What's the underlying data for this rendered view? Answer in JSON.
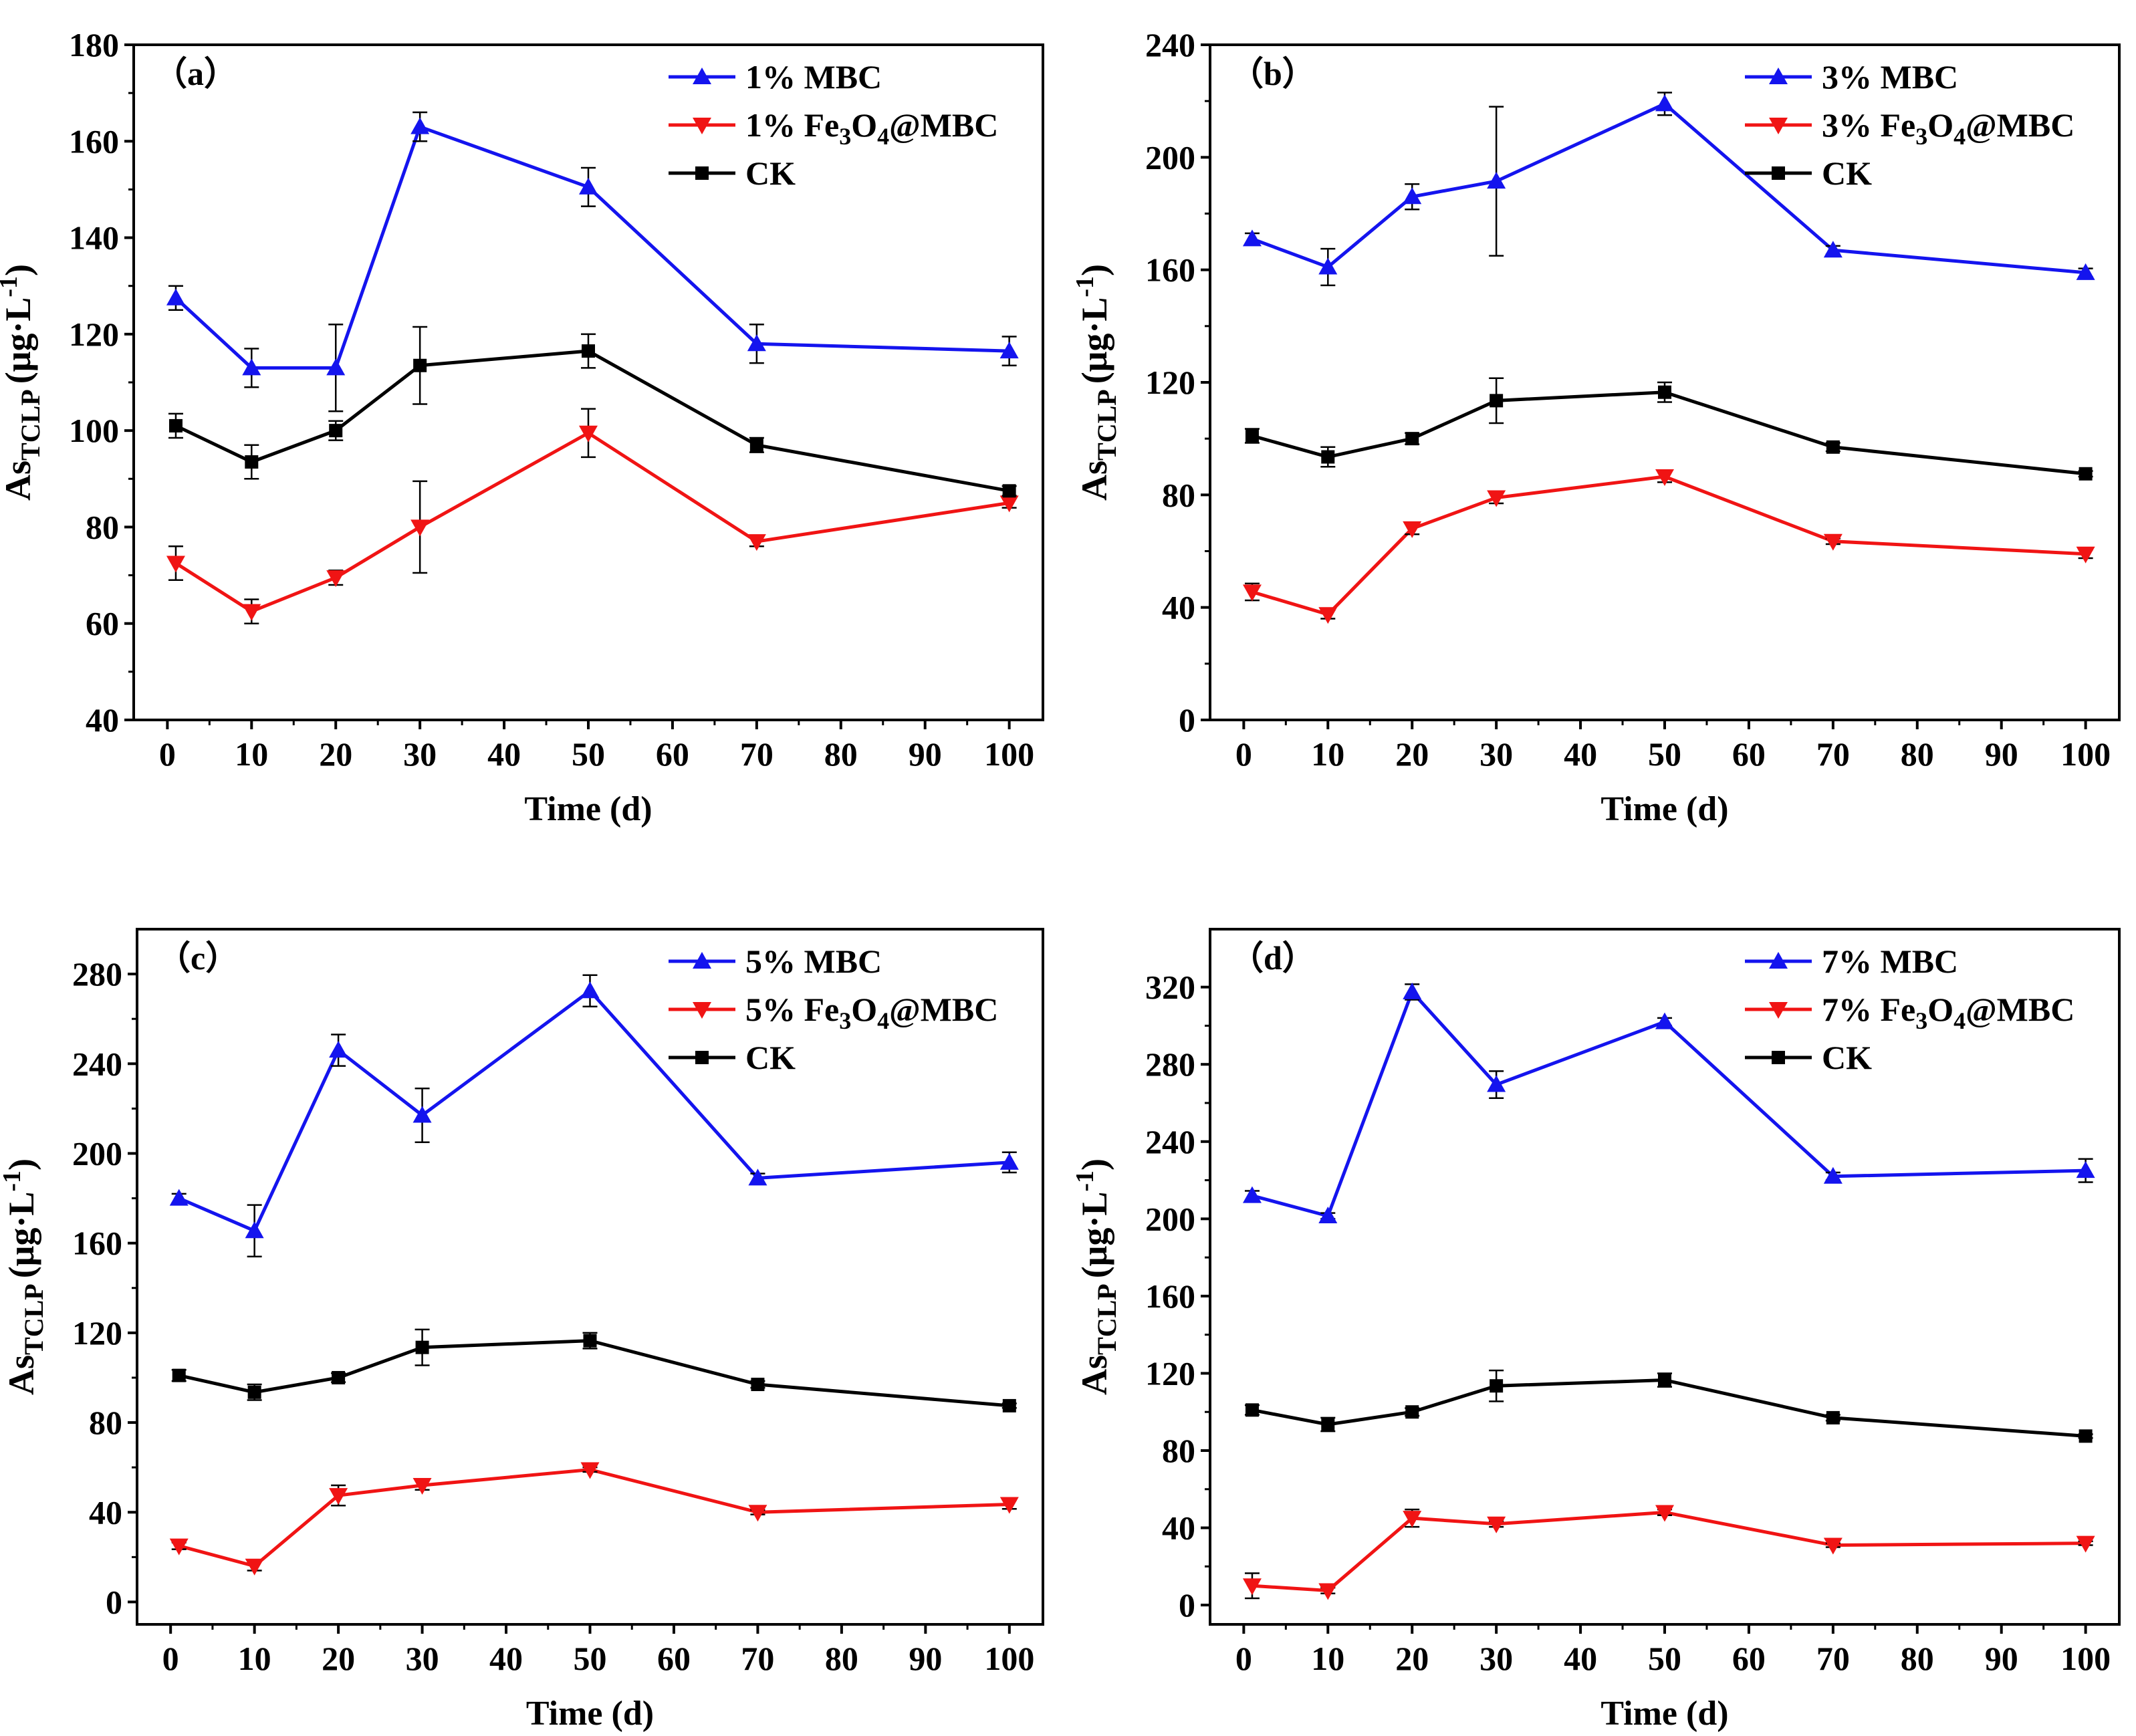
{
  "figure": {
    "colors": {
      "mbc": "#1414ee",
      "fe": "#f01414",
      "ck": "#000000"
    },
    "xlabel": "Time (d)",
    "ylabel_main": "As",
    "ylabel_sub": "TCLP",
    "ylabel_unit": "(μg·L",
    "ylabel_sup": "-1",
    "ylabel_close": ")"
  },
  "chart_data": [
    {
      "type": "line",
      "panel_label": "（a）",
      "x": [
        1,
        10,
        20,
        30,
        50,
        70,
        100
      ],
      "xlim": [
        -4,
        104
      ],
      "x_ticks": [
        0,
        10,
        20,
        30,
        40,
        50,
        60,
        70,
        80,
        90,
        100
      ],
      "ylim": [
        40,
        180
      ],
      "y_ticks": [
        40,
        60,
        80,
        100,
        120,
        140,
        160,
        180
      ],
      "xlabel": "Time (d)",
      "ylabel": "AsTCLP (μg·L-1)",
      "legend_position": "top-right",
      "series": [
        {
          "key": "mbc",
          "legend": [
            {
              "t": "1% MBC"
            }
          ],
          "marker": "triangle-up",
          "values": [
            127.5,
            113,
            113,
            163,
            150.5,
            118,
            116.5
          ],
          "errors": [
            2.5,
            4,
            9,
            3,
            4,
            4,
            3
          ]
        },
        {
          "key": "fe",
          "legend": [
            {
              "t": "1% Fe"
            },
            {
              "t": "3",
              "sub": true
            },
            {
              "t": "O"
            },
            {
              "t": "4",
              "sub": true
            },
            {
              "t": "@MBC"
            }
          ],
          "marker": "triangle-down",
          "values": [
            72.5,
            62.5,
            69.5,
            80,
            99.5,
            77,
            85
          ],
          "errors": [
            3.5,
            2.5,
            1.5,
            9.5,
            5,
            1,
            1
          ]
        },
        {
          "key": "ck",
          "legend": [
            {
              "t": "CK"
            }
          ],
          "marker": "square",
          "values": [
            101,
            93.5,
            100,
            113.5,
            116.5,
            97,
            87.5
          ],
          "errors": [
            2.5,
            3.5,
            2,
            8,
            3.5,
            1.5,
            1
          ]
        }
      ]
    },
    {
      "type": "line",
      "panel_label": "（b）",
      "x": [
        1,
        10,
        20,
        30,
        50,
        70,
        100
      ],
      "xlim": [
        -4,
        104
      ],
      "x_ticks": [
        0,
        10,
        20,
        30,
        40,
        50,
        60,
        70,
        80,
        90,
        100
      ],
      "ylim": [
        0,
        240
      ],
      "y_ticks": [
        0,
        40,
        80,
        120,
        160,
        200,
        240
      ],
      "xlabel": "Time (d)",
      "ylabel": "AsTCLP (μg·L-1)",
      "legend_position": "top-right",
      "series": [
        {
          "key": "mbc",
          "legend": [
            {
              "t": "3% MBC"
            }
          ],
          "marker": "triangle-up",
          "values": [
            171,
            161,
            186,
            191.5,
            219,
            167,
            159
          ],
          "errors": [
            2,
            6.5,
            4.5,
            26.5,
            4,
            1.5,
            1.5
          ]
        },
        {
          "key": "fe",
          "legend": [
            {
              "t": "3% Fe"
            },
            {
              "t": "3",
              "sub": true
            },
            {
              "t": "O"
            },
            {
              "t": "4",
              "sub": true
            },
            {
              "t": "@MBC"
            }
          ],
          "marker": "triangle-down",
          "values": [
            45.5,
            37.5,
            68,
            79,
            86.5,
            63.5,
            59
          ],
          "errors": [
            3,
            1.5,
            2,
            2,
            2,
            1,
            1.5
          ]
        },
        {
          "key": "ck",
          "legend": [
            {
              "t": "CK"
            }
          ],
          "marker": "square",
          "values": [
            101,
            93.5,
            100,
            113.5,
            116.5,
            97,
            87.5
          ],
          "errors": [
            2.5,
            3.5,
            2,
            8,
            3.5,
            1.5,
            1
          ]
        }
      ]
    },
    {
      "type": "line",
      "panel_label": "（c）",
      "x": [
        1,
        10,
        20,
        30,
        50,
        70,
        100
      ],
      "xlim": [
        -4,
        104
      ],
      "x_ticks": [
        0,
        10,
        20,
        30,
        40,
        50,
        60,
        70,
        80,
        90,
        100
      ],
      "ylim": [
        -10,
        300
      ],
      "y_ticks": [
        0,
        40,
        80,
        120,
        160,
        200,
        240,
        280
      ],
      "xlabel": "Time (d)",
      "ylabel": "AsTCLP (μg·L-1)",
      "legend_position": "top-right",
      "series": [
        {
          "key": "mbc",
          "legend": [
            {
              "t": "5% MBC"
            }
          ],
          "marker": "triangle-up",
          "values": [
            180,
            165.5,
            246,
            217,
            272.5,
            189,
            196
          ],
          "errors": [
            2,
            11.5,
            7,
            12,
            7,
            2,
            4.5
          ]
        },
        {
          "key": "fe",
          "legend": [
            {
              "t": "5% Fe"
            },
            {
              "t": "3",
              "sub": true
            },
            {
              "t": "O"
            },
            {
              "t": "4",
              "sub": true
            },
            {
              "t": "@MBC"
            }
          ],
          "marker": "triangle-down",
          "values": [
            25,
            16,
            47.5,
            52,
            59,
            40,
            43.5
          ],
          "errors": [
            1.5,
            2,
            4.5,
            2,
            1,
            1,
            2
          ]
        },
        {
          "key": "ck",
          "legend": [
            {
              "t": "CK"
            }
          ],
          "marker": "square",
          "values": [
            101,
            93.5,
            100,
            113.5,
            116.5,
            97,
            87.5
          ],
          "errors": [
            2.5,
            3.5,
            2,
            8,
            3.5,
            1.5,
            1
          ]
        }
      ]
    },
    {
      "type": "line",
      "panel_label": "（d）",
      "x": [
        1,
        10,
        20,
        30,
        50,
        70,
        100
      ],
      "xlim": [
        -4,
        104
      ],
      "x_ticks": [
        0,
        10,
        20,
        30,
        40,
        50,
        60,
        70,
        80,
        90,
        100
      ],
      "ylim": [
        -10,
        350
      ],
      "y_ticks": [
        0,
        40,
        80,
        120,
        160,
        200,
        240,
        280,
        320
      ],
      "xlabel": "Time (d)",
      "ylabel": "AsTCLP (μg·L-1)",
      "legend_position": "top-right",
      "series": [
        {
          "key": "mbc",
          "legend": [
            {
              "t": "7% MBC"
            }
          ],
          "marker": "triangle-up",
          "values": [
            212,
            201.5,
            317.5,
            269.5,
            302,
            222,
            225
          ],
          "errors": [
            2.5,
            1.5,
            4,
            7,
            2,
            2,
            6
          ]
        },
        {
          "key": "fe",
          "legend": [
            {
              "t": "7% Fe"
            },
            {
              "t": "3",
              "sub": true
            },
            {
              "t": "O"
            },
            {
              "t": "4",
              "sub": true
            },
            {
              "t": "@MBC"
            }
          ],
          "marker": "triangle-down",
          "values": [
            10,
            7.5,
            45,
            42,
            48,
            31,
            32
          ],
          "errors": [
            6.5,
            1.5,
            4.5,
            1.5,
            1.5,
            1,
            1
          ]
        },
        {
          "key": "ck",
          "legend": [
            {
              "t": "CK"
            }
          ],
          "marker": "square",
          "values": [
            101,
            93.5,
            100,
            113.5,
            116.5,
            97,
            87.5
          ],
          "errors": [
            2.5,
            3.5,
            2,
            8,
            3.5,
            1.5,
            1
          ]
        }
      ]
    }
  ]
}
